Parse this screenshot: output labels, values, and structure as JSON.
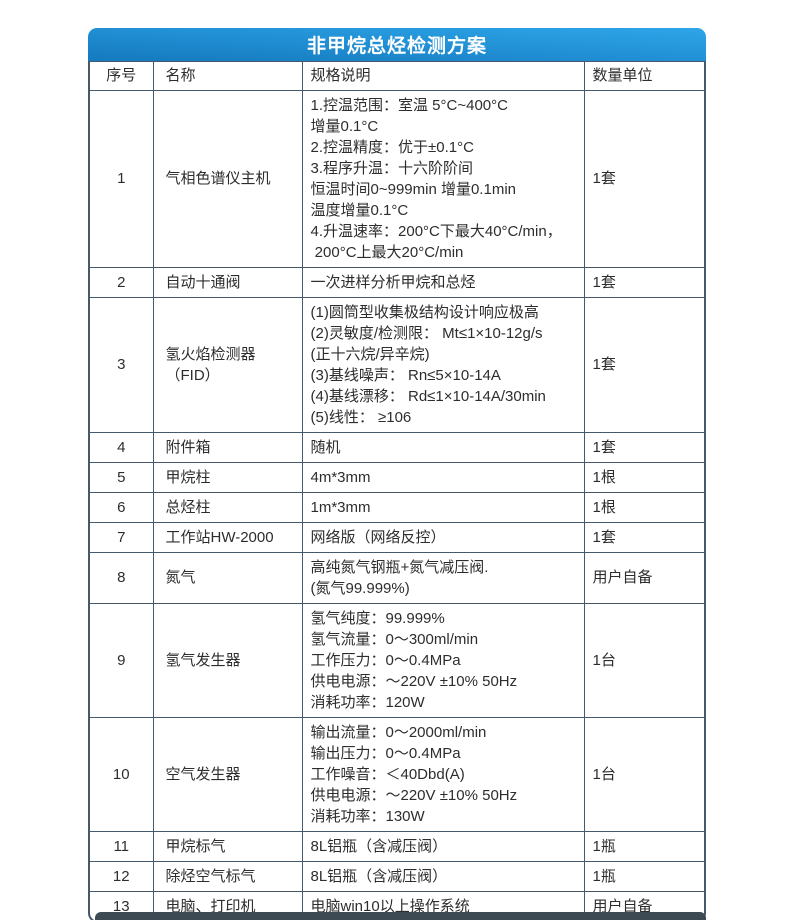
{
  "title": "非甲烷总烃检测方案",
  "columns": {
    "no": "序号",
    "name": "名称",
    "spec": "规格说明",
    "qty": "数量单位"
  },
  "rows": [
    {
      "no": "1",
      "name": "气相色谱仪主机",
      "spec": "1.控温范围：室温 5°C~400°C\n增量0.1°C\n2.控温精度：优于±0.1°C\n3.程序升温：十六阶阶间\n恒温时间0~999min 增量0.1min\n温度增量0.1°C\n4.升温速率：200°C下最大40°C/min，\n 200°C上最大20°C/min",
      "qty": "1套"
    },
    {
      "no": "2",
      "name": "自动十通阀",
      "spec": "一次进样分析甲烷和总烃",
      "qty": "1套"
    },
    {
      "no": "3",
      "name": "氢火焰检测器（FID）",
      "spec": "(1)圆筒型收集极结构设计响应极高\n(2)灵敏度/检测限： Mt≤1×10-12g/s\n(正十六烷/异辛烷)\n(3)基线噪声： Rn≤5×10-14A\n(4)基线漂移： Rd≤1×10-14A/30min\n(5)线性： ≥106",
      "qty": "1套"
    },
    {
      "no": "4",
      "name": "附件箱",
      "spec": "随机",
      "qty": "1套"
    },
    {
      "no": "5",
      "name": "甲烷柱",
      "spec": "4m*3mm",
      "qty": "1根"
    },
    {
      "no": "6",
      "name": "总烃柱",
      "spec": "1m*3mm",
      "qty": "1根"
    },
    {
      "no": "7",
      "name": "工作站HW-2000",
      "spec": "网络版（网络反控）",
      "qty": "1套"
    },
    {
      "no": "8",
      "name": "氮气",
      "spec": "高纯氮气钢瓶+氮气减压阀.\n(氮气99.999%)",
      "qty": "用户自备"
    },
    {
      "no": "9",
      "name": "氢气发生器",
      "spec": "氢气纯度：99.999%\n氢气流量：0～300ml/min\n工作压力：0～0.4MPa\n供电电源：～220V ±10% 50Hz\n消耗功率：120W",
      "qty": "1台"
    },
    {
      "no": "10",
      "name": "空气发生器",
      "spec": "输出流量：0～2000ml/min\n输出压力：0～0.4MPa\n工作噪音：＜40Dbd(A)\n供电电源：～220V ±10% 50Hz\n消耗功率：130W",
      "qty": "1台"
    },
    {
      "no": "11",
      "name": "甲烷标气",
      "spec": "8L铝瓶（含减压阀）",
      "qty": "1瓶"
    },
    {
      "no": "12",
      "name": "除烃空气标气",
      "spec": "8L铝瓶（含减压阀）",
      "qty": "1瓶"
    },
    {
      "no": "13",
      "name": "电脑、打印机",
      "spec": "电脑win10以上操作系统",
      "qty": "用户自备"
    }
  ],
  "colors": {
    "title_bar_start": "#1579bf",
    "title_bar_end": "#2ea6e9",
    "title_text": "#ffffff",
    "border": "#46586c",
    "body_text": "#2d2d2d",
    "next_section_bar": "#3d4a54"
  }
}
